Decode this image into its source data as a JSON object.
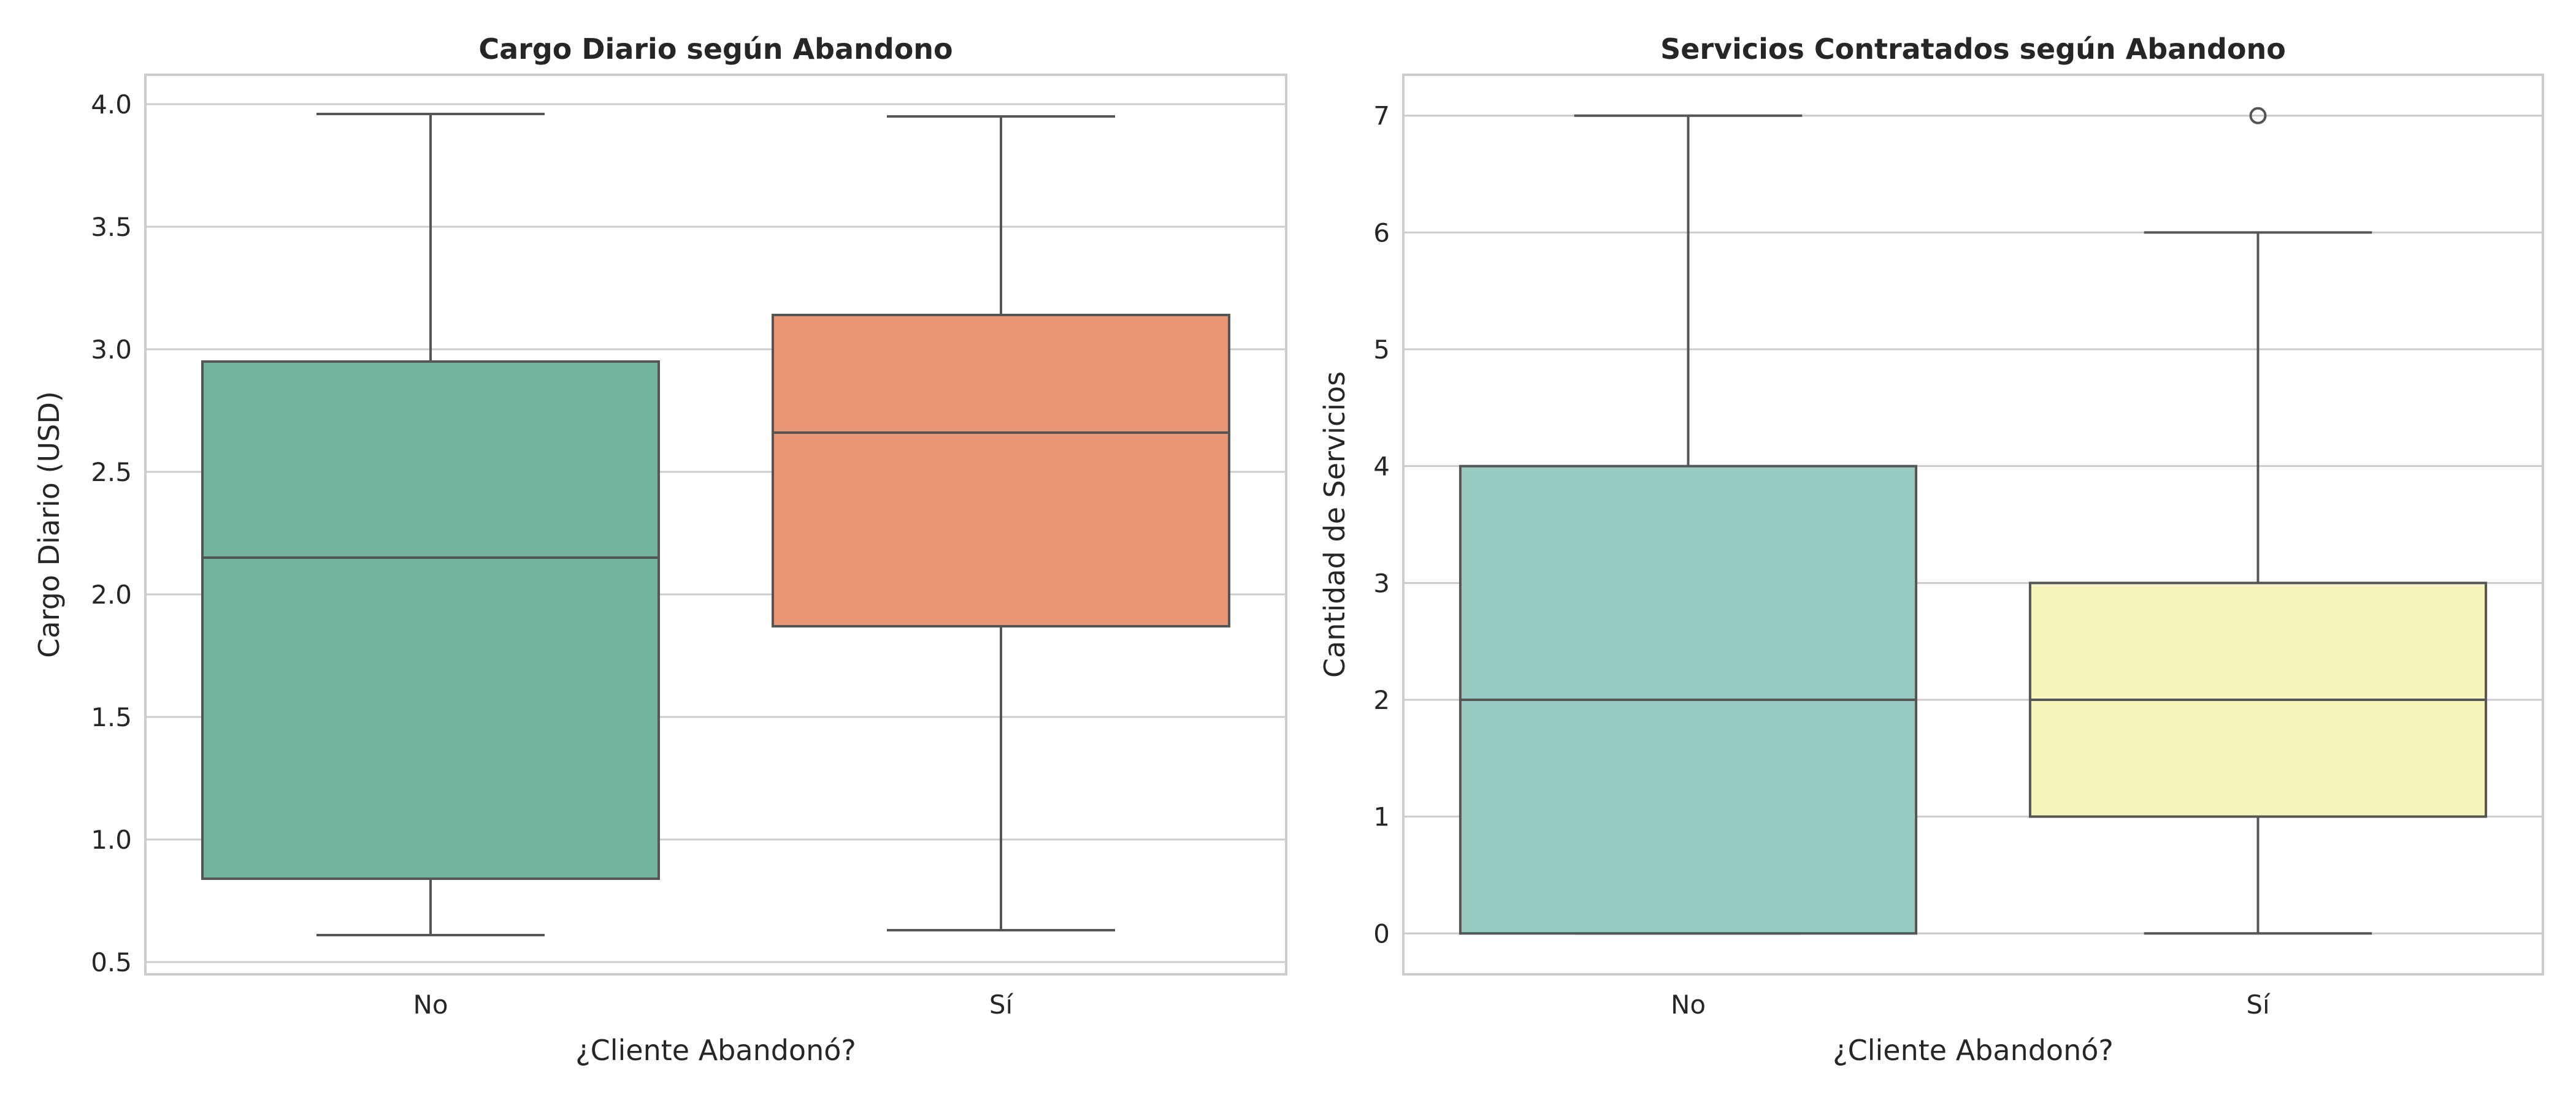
{
  "chart_data": [
    {
      "type": "box",
      "title": "Cargo Diario según Abandono",
      "xlabel": "¿Cliente Abandonó?",
      "ylabel": "Cargo Diario (USD)",
      "ylim": [
        0.45,
        4.12
      ],
      "yticks": [
        0.5,
        1.0,
        1.5,
        2.0,
        2.5,
        3.0,
        3.5,
        4.0
      ],
      "ytick_labels": [
        "0.5",
        "1.0",
        "1.5",
        "2.0",
        "2.5",
        "3.0",
        "3.5",
        "4.0"
      ],
      "grid": "horizontal",
      "categories": [
        "No",
        "Sí"
      ],
      "boxes": [
        {
          "category": "No",
          "whisker_low": 0.61,
          "q1": 0.84,
          "median": 2.15,
          "q3": 2.95,
          "whisker_high": 3.96,
          "outliers": [],
          "color": "#72b6a1"
        },
        {
          "category": "Sí",
          "whisker_low": 0.63,
          "q1": 1.87,
          "median": 2.66,
          "q3": 3.14,
          "whisker_high": 3.95,
          "outliers": [],
          "color": "#e99675"
        }
      ]
    },
    {
      "type": "box",
      "title": "Servicios Contratados según Abandono",
      "xlabel": "¿Cliente Abandonó?",
      "ylabel": "Cantidad de Servicios",
      "ylim": [
        -0.35,
        7.35
      ],
      "yticks": [
        0,
        1,
        2,
        3,
        4,
        5,
        6,
        7
      ],
      "ytick_labels": [
        "0",
        "1",
        "2",
        "3",
        "4",
        "5",
        "6",
        "7"
      ],
      "grid": "horizontal",
      "categories": [
        "No",
        "Sí"
      ],
      "boxes": [
        {
          "category": "No",
          "whisker_low": 0,
          "q1": 0,
          "median": 2,
          "q3": 4,
          "whisker_high": 7,
          "outliers": [],
          "color": "#96c9c0"
        },
        {
          "category": "Sí",
          "whisker_low": 0,
          "q1": 1,
          "median": 2,
          "q3": 3,
          "whisker_high": 6,
          "outliers": [
            7
          ],
          "color": "#f6f6bc"
        }
      ]
    }
  ]
}
